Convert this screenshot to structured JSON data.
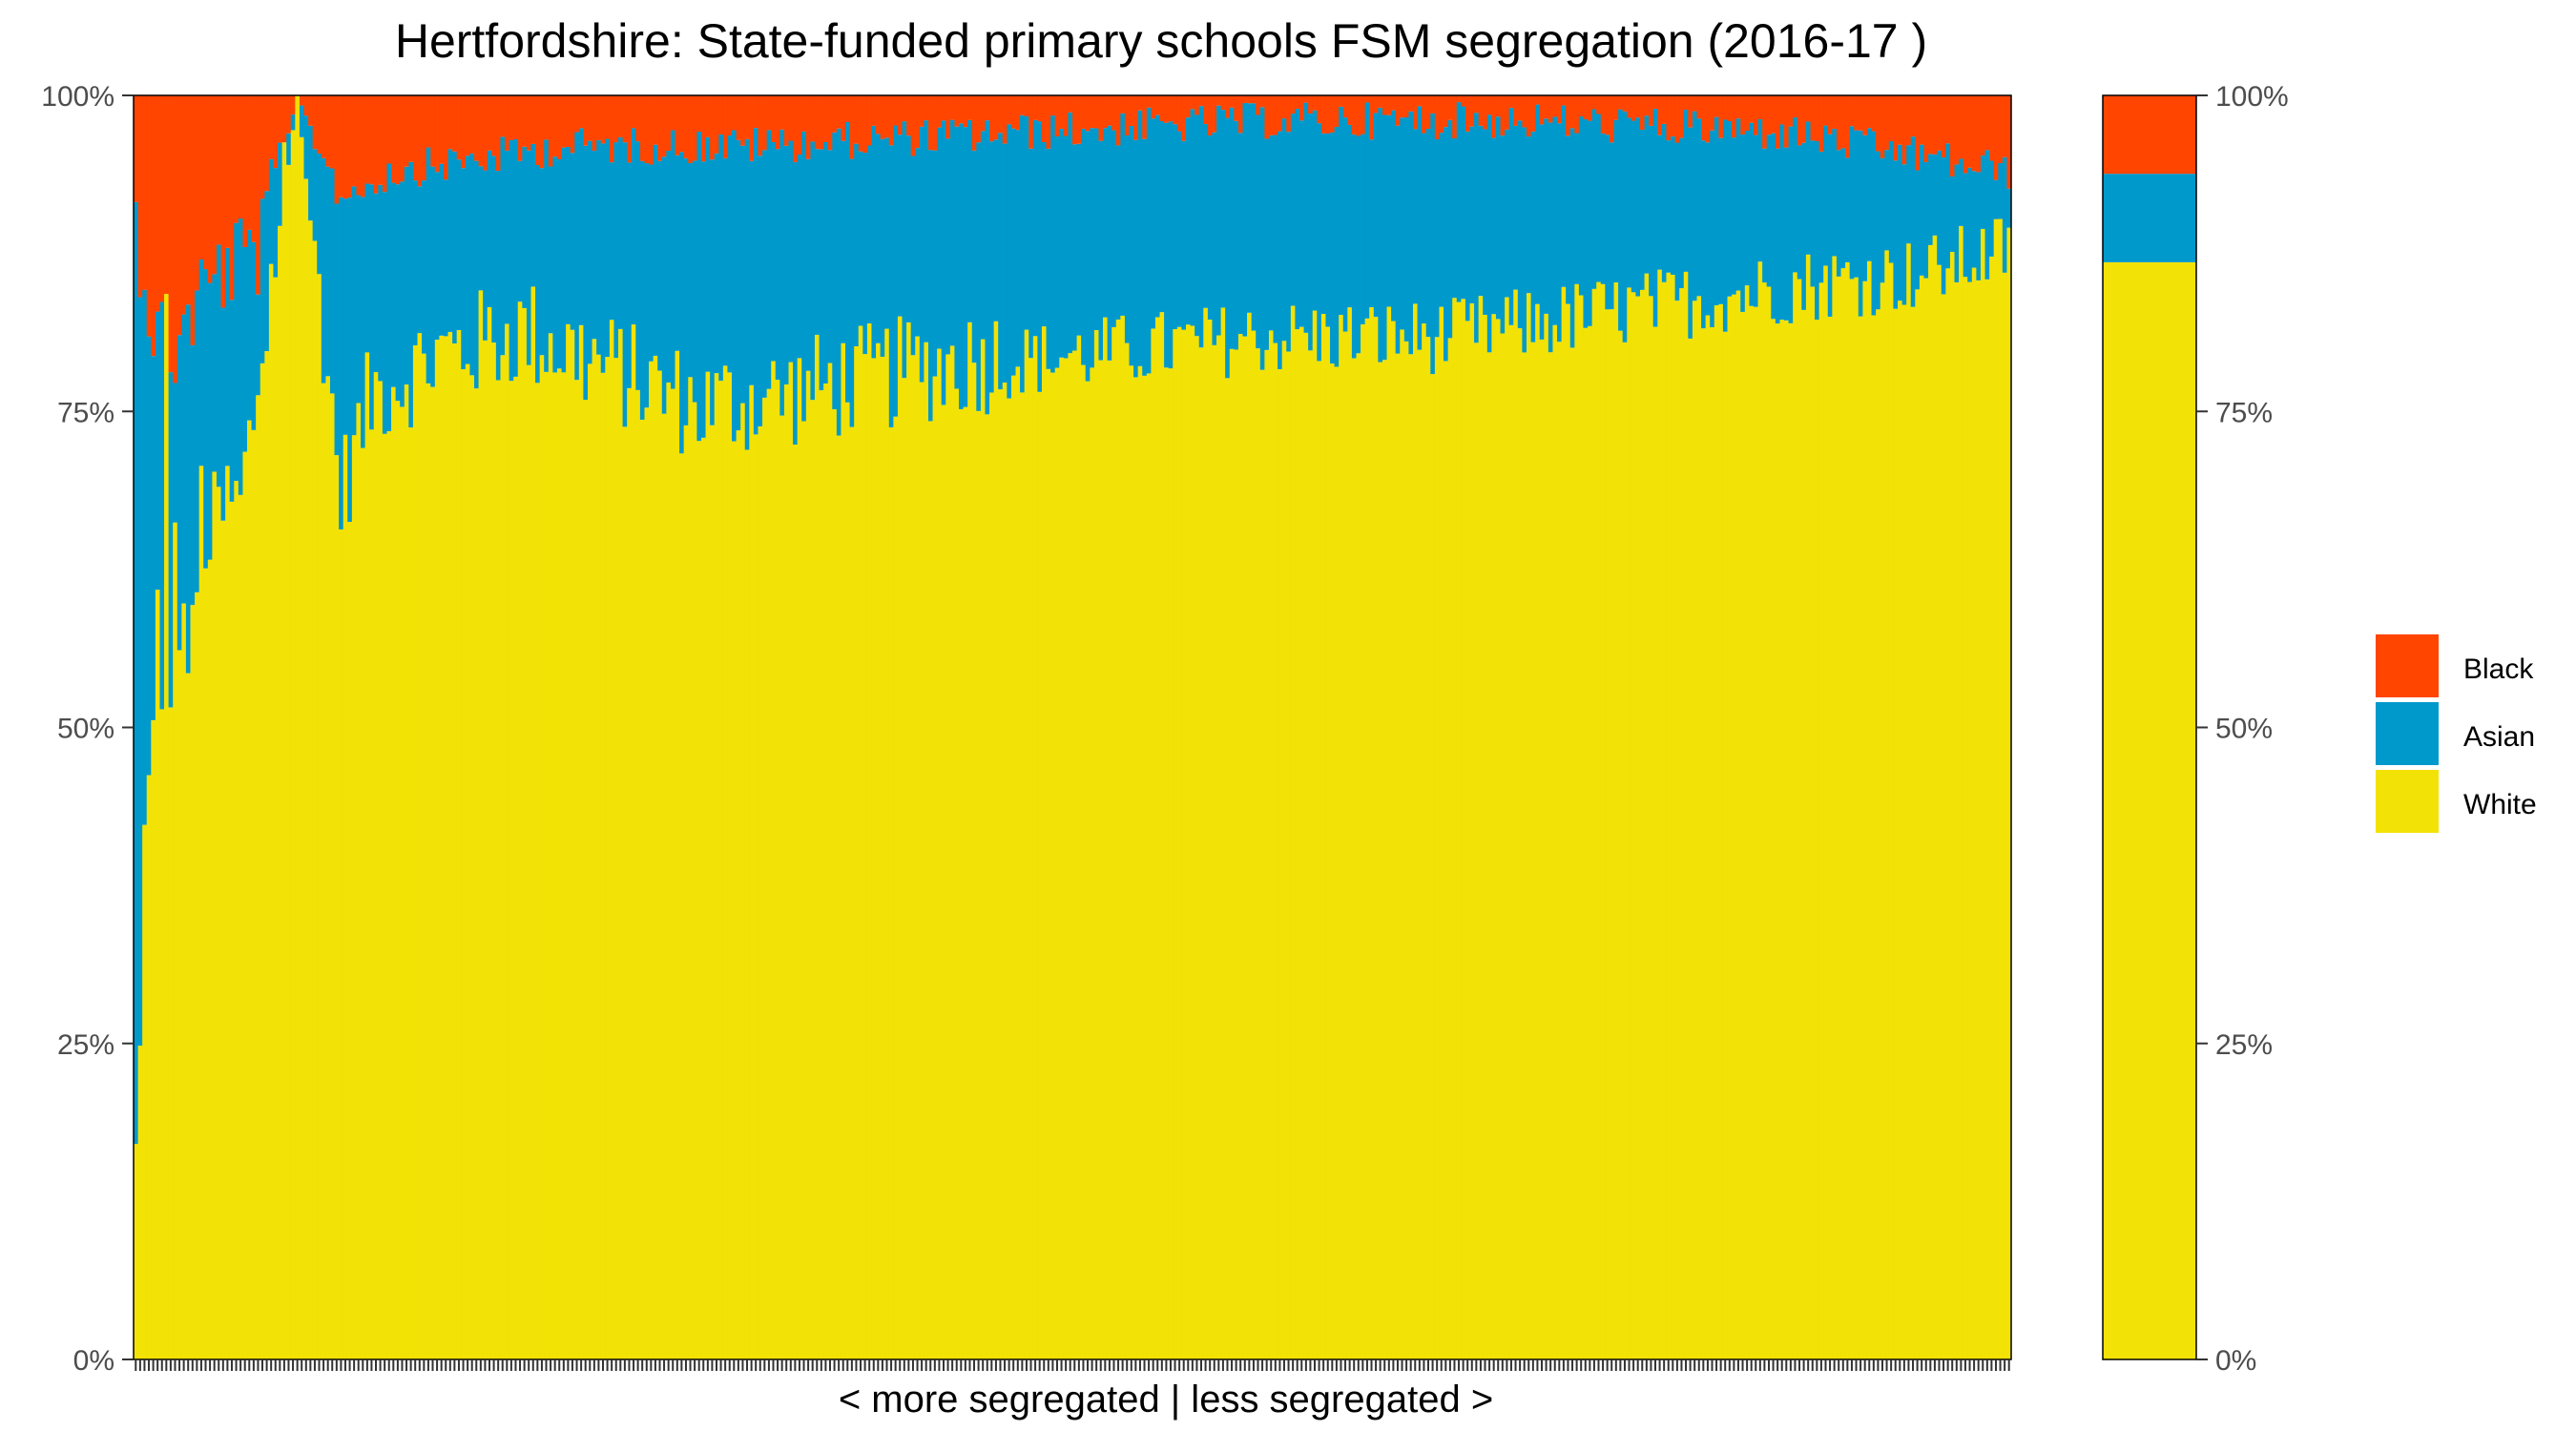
{
  "chart_data": {
    "type": "bar",
    "stacked": true,
    "title": "Hertfordshire: State-funded primary schools FSM segregation (2016-17 )",
    "xlabel": "< more segregated | less segregated >",
    "ylabel": "",
    "y_ticks": [
      "0%",
      "25%",
      "50%",
      "75%",
      "100%"
    ],
    "ylim": [
      0,
      100
    ],
    "grid": false,
    "legend_position": "right",
    "colors": {
      "Black": "#FF4500",
      "Asian": "#0099CC",
      "White": "#F2E205"
    },
    "series_order_bottom_to_top": [
      "White",
      "Asian",
      "Black"
    ],
    "legend": [
      "Black",
      "Asian",
      "White"
    ],
    "x_ticks_labeled": false,
    "school_count": 430,
    "schools_sorted_by_segregation": {
      "anchor_points_white_pct": [
        [
          1,
          14
        ],
        [
          2,
          22
        ],
        [
          3,
          39
        ],
        [
          4,
          48
        ],
        [
          5,
          47
        ],
        [
          6,
          57
        ],
        [
          7,
          47
        ],
        [
          8,
          82
        ],
        [
          9,
          53
        ],
        [
          10,
          61
        ],
        [
          12,
          56
        ],
        [
          14,
          54
        ],
        [
          16,
          66
        ],
        [
          18,
          63
        ],
        [
          20,
          65
        ],
        [
          22,
          66
        ],
        [
          25,
          66
        ],
        [
          30,
          78
        ],
        [
          38,
          100
        ],
        [
          48,
          67
        ],
        [
          55,
          75
        ],
        [
          70,
          78
        ],
        [
          90,
          80
        ],
        [
          110,
          77
        ],
        [
          130,
          74
        ],
        [
          150,
          75
        ],
        [
          180,
          77
        ],
        [
          200,
          78
        ],
        [
          230,
          79
        ],
        [
          260,
          80
        ],
        [
          300,
          80
        ],
        [
          340,
          82
        ],
        [
          380,
          84
        ],
        [
          410,
          85
        ],
        [
          430,
          87
        ]
      ],
      "anchor_points_black_pct": [
        [
          1,
          10
        ],
        [
          5,
          18
        ],
        [
          10,
          20
        ],
        [
          15,
          16
        ],
        [
          20,
          14
        ],
        [
          30,
          12
        ],
        [
          38,
          0
        ],
        [
          48,
          8
        ],
        [
          60,
          6
        ],
        [
          80,
          5
        ],
        [
          100,
          4
        ],
        [
          140,
          4
        ],
        [
          200,
          3
        ],
        [
          260,
          2
        ],
        [
          320,
          2
        ],
        [
          380,
          3
        ],
        [
          430,
          6
        ]
      ]
    },
    "overall": {
      "White": 86.8,
      "Asian": 7.0,
      "Black": 6.2
    }
  }
}
